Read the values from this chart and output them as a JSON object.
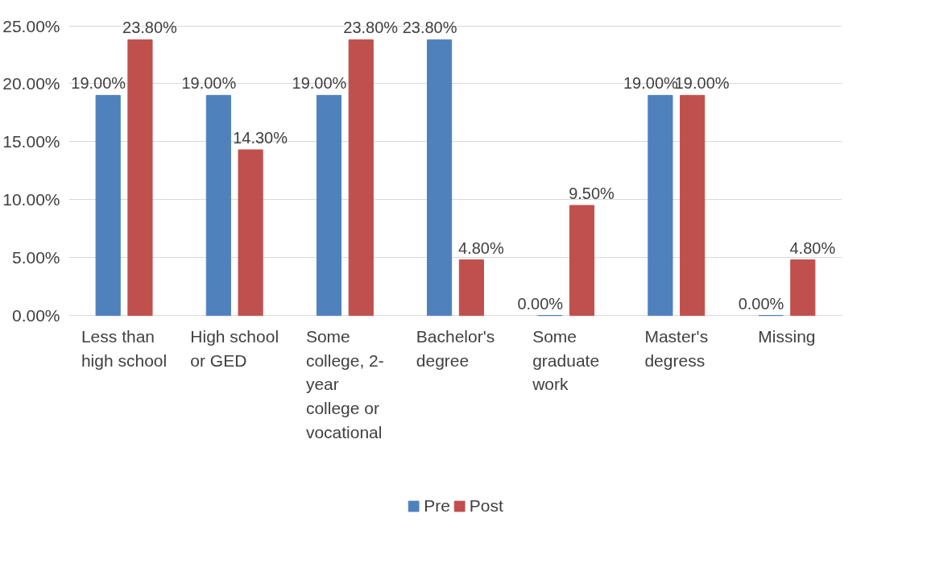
{
  "chart_data": {
    "type": "bar",
    "categories": [
      "Less than\nhigh school",
      "High school\nor GED",
      "Some\ncollege, 2-\nyear\ncollege or\nvocational",
      "Bachelor's\ndegree",
      "Some\ngraduate\nwork",
      "Master's\ndegress",
      "Missing"
    ],
    "series": [
      {
        "name": "Pre",
        "color": "#4f81bd",
        "values": [
          19.0,
          19.0,
          19.0,
          23.8,
          0.0,
          19.0,
          0.0
        ],
        "value_labels": [
          "19.00%",
          "19.00%",
          "19.00%",
          "23.80%",
          "0.00%",
          "19.00%",
          "0.00%"
        ]
      },
      {
        "name": "Post",
        "color": "#c0504d",
        "values": [
          23.8,
          14.3,
          23.8,
          4.8,
          9.5,
          19.0,
          4.8
        ],
        "value_labels": [
          "23.80%",
          "14.30%",
          "23.80%",
          "4.80%",
          "9.50%",
          "19.00%",
          "4.80%"
        ]
      }
    ],
    "ylim": [
      0,
      25
    ],
    "yticks": [
      {
        "value": 0,
        "label": "0.00%"
      },
      {
        "value": 5,
        "label": "5.00%"
      },
      {
        "value": 10,
        "label": "10.00%"
      },
      {
        "value": 15,
        "label": "15.00%"
      },
      {
        "value": 20,
        "label": "20.00%"
      },
      {
        "value": 25,
        "label": "25.00%"
      }
    ],
    "grid": "y",
    "legend": "bottom"
  }
}
